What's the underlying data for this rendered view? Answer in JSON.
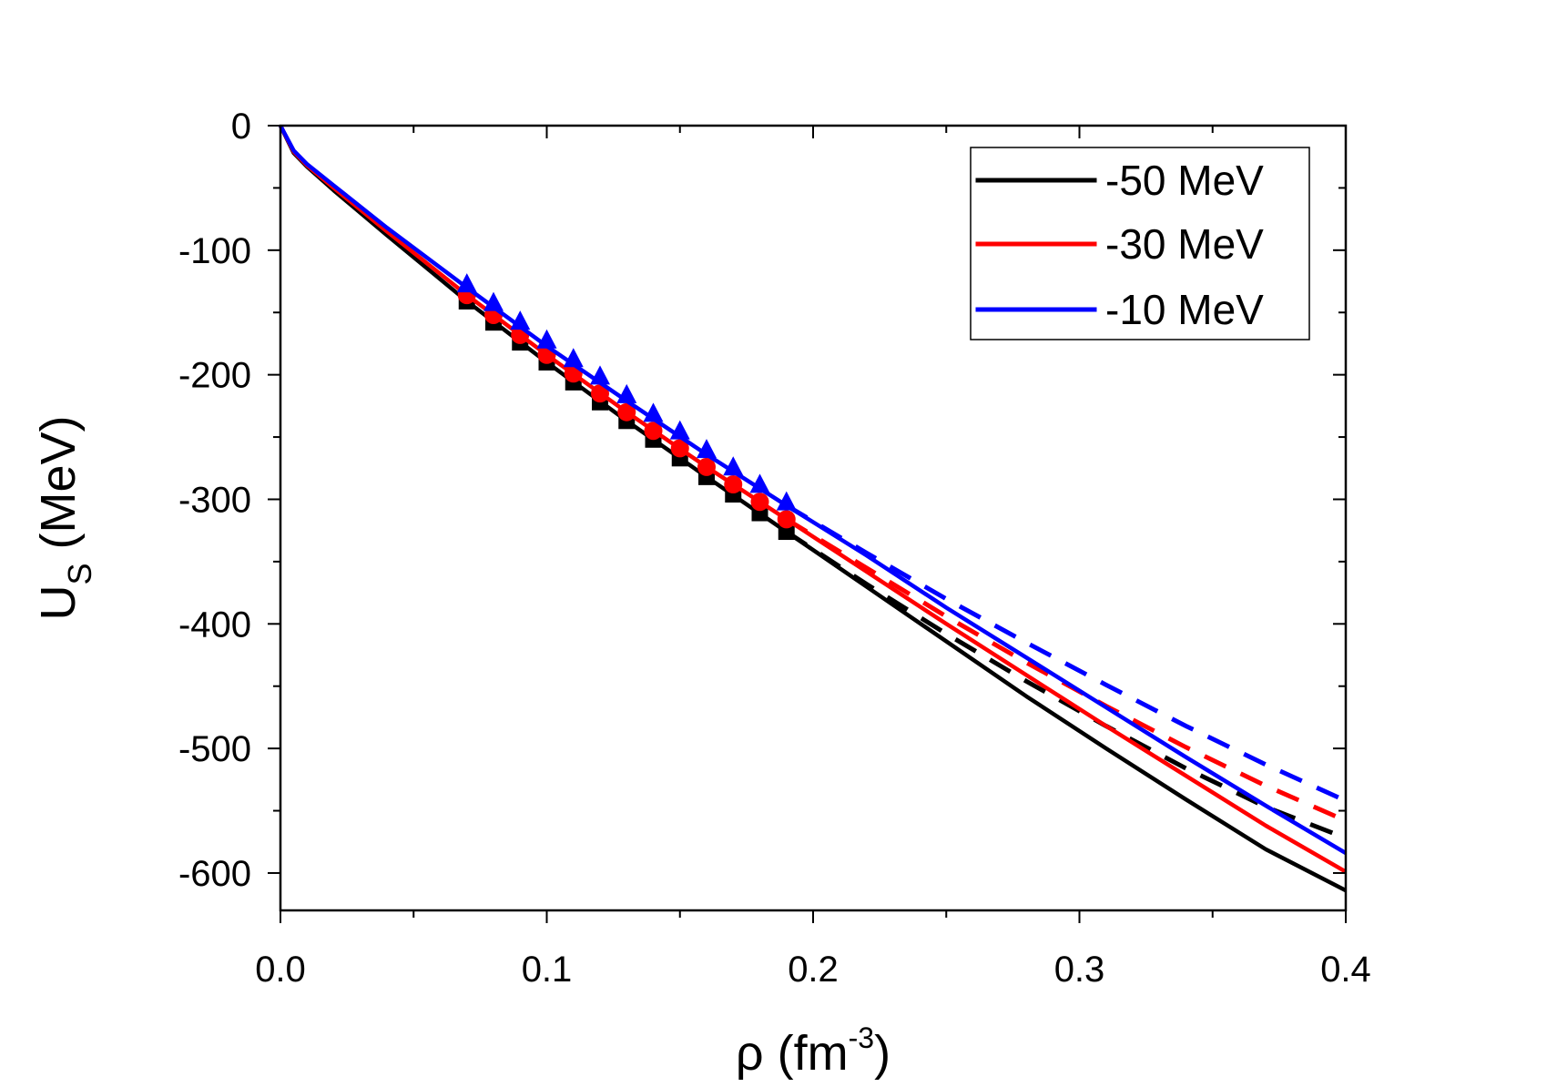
{
  "chart_data": {
    "type": "line",
    "xlabel": "ρ (fm",
    "xlabel_sup": "-3",
    "xlabel_tail": ")",
    "ylabel": "U",
    "ylabel_sub": "S",
    "ylabel_tail": " (MeV)",
    "xlim": [
      0.0,
      0.4
    ],
    "ylim": [
      -630,
      0
    ],
    "xticks": [
      0.0,
      0.1,
      0.2,
      0.3,
      0.4
    ],
    "xtick_labels": [
      "0.0",
      "0.1",
      "0.2",
      "0.3",
      "0.4"
    ],
    "yticks": [
      0,
      -100,
      -200,
      -300,
      -400,
      -500,
      -600
    ],
    "ytick_labels": [
      "0",
      "-100",
      "-200",
      "-300",
      "-400",
      "-500",
      "-600"
    ],
    "legend_position": "top-right",
    "series": [
      {
        "name": "-50 MeV",
        "color": "#000000",
        "marker": "square",
        "solid": {
          "x": [
            0,
            0.005,
            0.01,
            0.02,
            0.04,
            0.07,
            0.1,
            0.13,
            0.16,
            0.19,
            0.22,
            0.25,
            0.28,
            0.31,
            0.34,
            0.37,
            0.4
          ],
          "y": [
            0,
            -22,
            -33,
            -52,
            -88,
            -141,
            -190,
            -237,
            -282,
            -326,
            -370,
            -414,
            -458,
            -500,
            -541,
            -581,
            -614
          ]
        },
        "dashed": {
          "x": [
            0.19,
            0.22,
            0.25,
            0.28,
            0.31,
            0.34,
            0.37,
            0.4
          ],
          "y": [
            -326,
            -368,
            -408,
            -446,
            -482,
            -516,
            -547,
            -572
          ]
        },
        "markers": {
          "x": [
            0.07,
            0.08,
            0.09,
            0.1,
            0.11,
            0.12,
            0.13,
            0.14,
            0.15,
            0.16,
            0.17,
            0.18,
            0.19
          ],
          "y": [
            -141,
            -158,
            -174,
            -190,
            -206,
            -222,
            -237,
            -252,
            -267,
            -282,
            -296,
            -311,
            -326
          ]
        }
      },
      {
        "name": "-30 MeV",
        "color": "#ff0000",
        "marker": "circle",
        "solid": {
          "x": [
            0,
            0.005,
            0.01,
            0.02,
            0.04,
            0.07,
            0.1,
            0.13,
            0.16,
            0.19,
            0.22,
            0.25,
            0.28,
            0.31,
            0.34,
            0.37,
            0.4
          ],
          "y": [
            0,
            -21,
            -32,
            -50,
            -85,
            -136,
            -184,
            -230,
            -274,
            -316,
            -358,
            -400,
            -441,
            -482,
            -522,
            -562,
            -599
          ]
        },
        "dashed": {
          "x": [
            0.19,
            0.22,
            0.25,
            0.28,
            0.31,
            0.34,
            0.37,
            0.4
          ],
          "y": [
            -316,
            -355,
            -394,
            -431,
            -466,
            -499,
            -530,
            -558
          ]
        },
        "markers": {
          "x": [
            0.07,
            0.08,
            0.09,
            0.1,
            0.11,
            0.12,
            0.13,
            0.14,
            0.15,
            0.16,
            0.17,
            0.18,
            0.19
          ],
          "y": [
            -136,
            -152,
            -168,
            -184,
            -199,
            -215,
            -230,
            -245,
            -259,
            -274,
            -288,
            -302,
            -316
          ]
        }
      },
      {
        "name": "-10 MeV",
        "color": "#0000ff",
        "marker": "triangle",
        "solid": {
          "x": [
            0,
            0.005,
            0.01,
            0.02,
            0.04,
            0.07,
            0.1,
            0.13,
            0.16,
            0.19,
            0.22,
            0.25,
            0.28,
            0.31,
            0.34,
            0.37,
            0.4
          ],
          "y": [
            0,
            -20,
            -31,
            -48,
            -82,
            -130,
            -177,
            -221,
            -264,
            -305,
            -345,
            -387,
            -427,
            -467,
            -507,
            -546,
            -584
          ]
        },
        "dashed": {
          "x": [
            0.19,
            0.22,
            0.25,
            0.28,
            0.31,
            0.34,
            0.37,
            0.4
          ],
          "y": [
            -305,
            -343,
            -380,
            -415,
            -449,
            -482,
            -513,
            -542
          ]
        },
        "markers": {
          "x": [
            0.07,
            0.08,
            0.09,
            0.1,
            0.11,
            0.12,
            0.13,
            0.14,
            0.15,
            0.16,
            0.17,
            0.18,
            0.19
          ],
          "y": [
            -128,
            -143,
            -158,
            -173,
            -188,
            -202,
            -217,
            -232,
            -246,
            -261,
            -275,
            -289,
            -303
          ]
        }
      }
    ]
  }
}
